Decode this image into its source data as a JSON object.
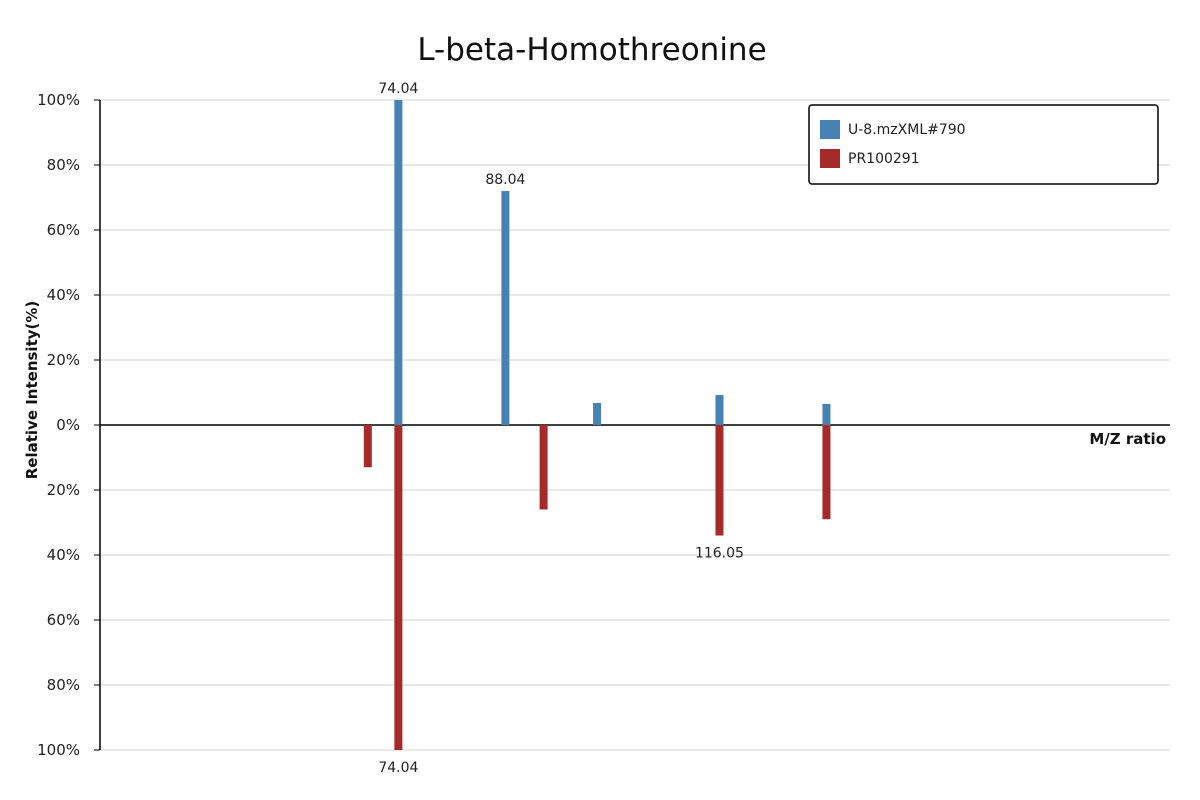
{
  "chart_data": {
    "type": "bar",
    "title": "L-beta-Homothreonine",
    "xlabel": "M/Z ratio",
    "ylabel": "Relative Intensity(%)",
    "ylim": [
      -100,
      100
    ],
    "xlim": [
      35,
      175
    ],
    "y_ticks": [
      {
        "value": 100,
        "label": "100%"
      },
      {
        "value": 80,
        "label": "80%"
      },
      {
        "value": 60,
        "label": "60%"
      },
      {
        "value": 40,
        "label": "40%"
      },
      {
        "value": 20,
        "label": "20%"
      },
      {
        "value": 0,
        "label": "0%"
      },
      {
        "value": -20,
        "label": "20%"
      },
      {
        "value": -40,
        "label": "40%"
      },
      {
        "value": -60,
        "label": "60%"
      },
      {
        "value": -80,
        "label": "80%"
      },
      {
        "value": -100,
        "label": "100%"
      }
    ],
    "grid": true,
    "legend_position": "top-right",
    "series": [
      {
        "name": "U-8.mzXML#790",
        "color": "#4682b4",
        "direction": "up",
        "points": [
          {
            "mz": 74.04,
            "intensity": 100,
            "label": "74.04"
          },
          {
            "mz": 88.04,
            "intensity": 72,
            "label": "88.04"
          },
          {
            "mz": 100.04,
            "intensity": 6.8
          },
          {
            "mz": 116.05,
            "intensity": 9.2
          },
          {
            "mz": 130.05,
            "intensity": 6.5
          }
        ]
      },
      {
        "name": "PR100291",
        "color": "#a52a2a",
        "direction": "down",
        "points": [
          {
            "mz": 70.04,
            "intensity": 13
          },
          {
            "mz": 74.04,
            "intensity": 100,
            "label": "74.04"
          },
          {
            "mz": 93.04,
            "intensity": 26
          },
          {
            "mz": 116.05,
            "intensity": 34,
            "label": "116.05"
          },
          {
            "mz": 130.05,
            "intensity": 29
          }
        ]
      }
    ]
  }
}
